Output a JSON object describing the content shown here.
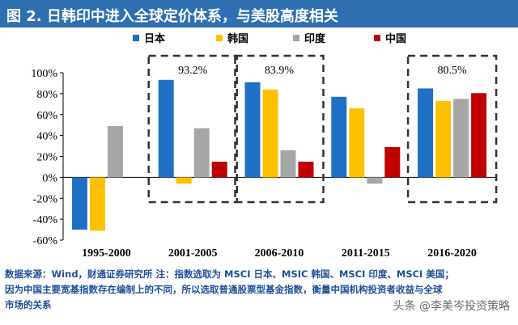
{
  "header": {
    "title": "图 2. 日韩印中进入全球定价体系，与美股高度相关"
  },
  "chart_data": {
    "type": "bar",
    "categories": [
      "1995-2000",
      "2001-2005",
      "2006-2010",
      "2011-2015",
      "2016-2020"
    ],
    "series": [
      {
        "name": "日本",
        "color": "#1f6fc5",
        "values": [
          -50,
          93.2,
          91,
          77,
          85
        ]
      },
      {
        "name": "韩国",
        "color": "#ffc000",
        "values": [
          -51,
          -6,
          83.9,
          66,
          73
        ]
      },
      {
        "name": "印度",
        "color": "#a6a6a6",
        "values": [
          49,
          47,
          26,
          -6,
          75
        ]
      },
      {
        "name": "中国",
        "color": "#c00000",
        "values": [
          null,
          15,
          15,
          29,
          80.5
        ]
      }
    ],
    "ylim": [
      -60,
      100
    ],
    "yticks": [
      "-60%",
      "-40%",
      "-20%",
      "0%",
      "20%",
      "40%",
      "60%",
      "80%",
      "100%"
    ],
    "ytick_values": [
      -60,
      -40,
      -20,
      0,
      20,
      40,
      60,
      80,
      100
    ],
    "legend_position": "top",
    "annotations": [
      {
        "text": "93.2%",
        "category": 1
      },
      {
        "text": "83.9%",
        "category": 2
      },
      {
        "text": "80.5%",
        "category": 4
      }
    ],
    "grid": false
  },
  "footer": {
    "line1": "数据来源：Wind，财通证券研究所   注：指数选取为 MSCI 日本、MSIC 韩国、MSCI 印度、MSCI 美国；",
    "line2": "因为中国主要宽基指数存在编制上的不同，所以选取普通股票型基金指数，衡量中国机构投资者收益与全球",
    "line3": "市场的关系"
  },
  "watermark": "头条 @李美岑投资策略"
}
